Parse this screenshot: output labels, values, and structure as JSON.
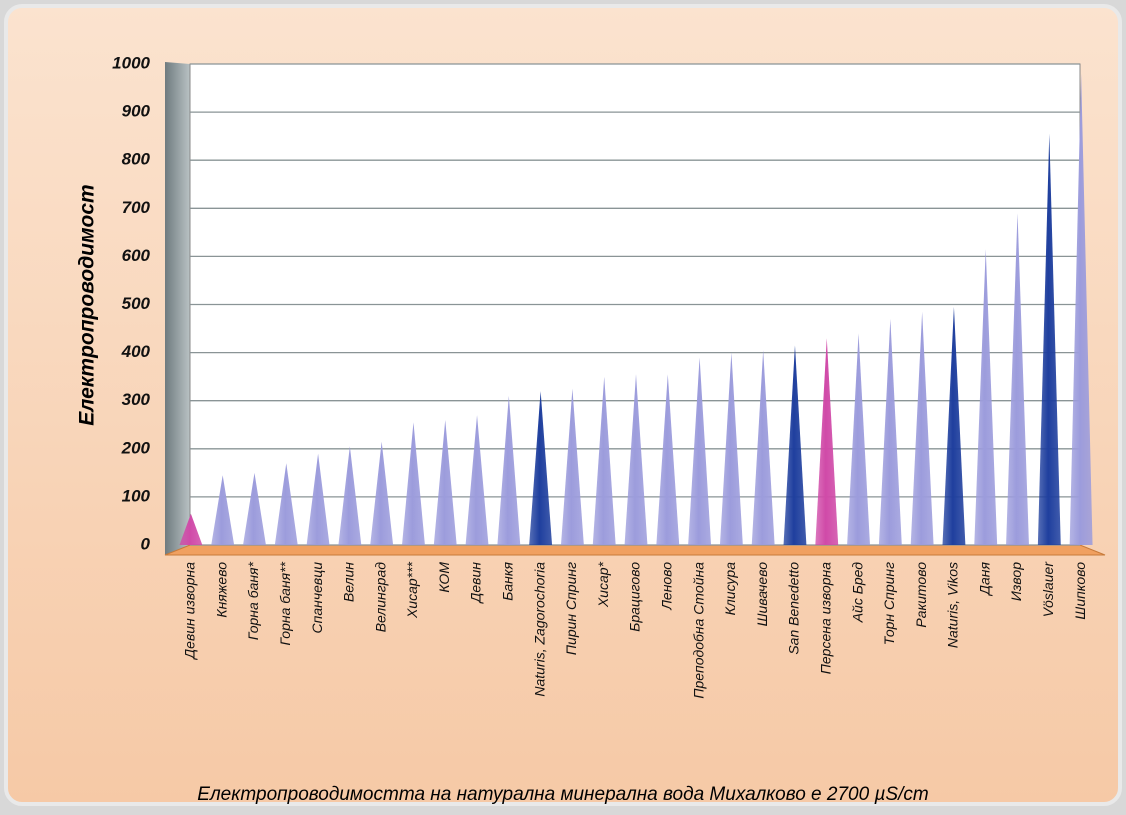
{
  "chart_data": {
    "type": "bar",
    "y_label": "Електропроводимост",
    "caption": "Електропроводимостта на натурална минерална вода Михалково е 2700 µS/cm",
    "categories": [
      "Девин изворна",
      "Княжево",
      "Горна баня*",
      "Горна баня**",
      "Спанчевци",
      "Велин",
      "Велинград",
      "Хисар***",
      "КОМ",
      "Девин",
      "Банкя",
      "Naturis, Zagorochoria",
      "Пирин Спринг",
      "Хисар*",
      "Брацигово",
      "Леново",
      "Преподобна Стойна",
      "Клисура",
      "Шивачево",
      "San Benedetto",
      "Персена изворна",
      "Айс Бред",
      "Торн Спринг",
      "Ракитово",
      "Naturis, Vikos",
      "Даня",
      "Извор",
      "Vöslauer",
      "Шипково"
    ],
    "values": [
      65,
      145,
      150,
      170,
      190,
      205,
      215,
      255,
      260,
      270,
      310,
      320,
      325,
      350,
      355,
      355,
      390,
      400,
      405,
      415,
      430,
      440,
      470,
      485,
      495,
      615,
      690,
      855,
      980
    ],
    "colors": [
      "#d04aa8",
      "#9c9cdc",
      "#9c9cdc",
      "#9c9cdc",
      "#9c9cdc",
      "#9c9cdc",
      "#9c9cdc",
      "#9c9cdc",
      "#9c9cdc",
      "#9c9cdc",
      "#9c9cdc",
      "#1f3f9e",
      "#9c9cdc",
      "#9c9cdc",
      "#9c9cdc",
      "#9c9cdc",
      "#9c9cdc",
      "#9c9cdc",
      "#9c9cdc",
      "#1f3f9e",
      "#d04aa8",
      "#9c9cdc",
      "#9c9cdc",
      "#9c9cdc",
      "#1f3f9e",
      "#9c9cdc",
      "#9c9cdc",
      "#1f3f9e",
      "#9c9cdc"
    ],
    "ylim": [
      0,
      1000
    ],
    "yticks": [
      0,
      100,
      200,
      300,
      400,
      500,
      600,
      700,
      800,
      900,
      1000
    ],
    "grid": true
  }
}
